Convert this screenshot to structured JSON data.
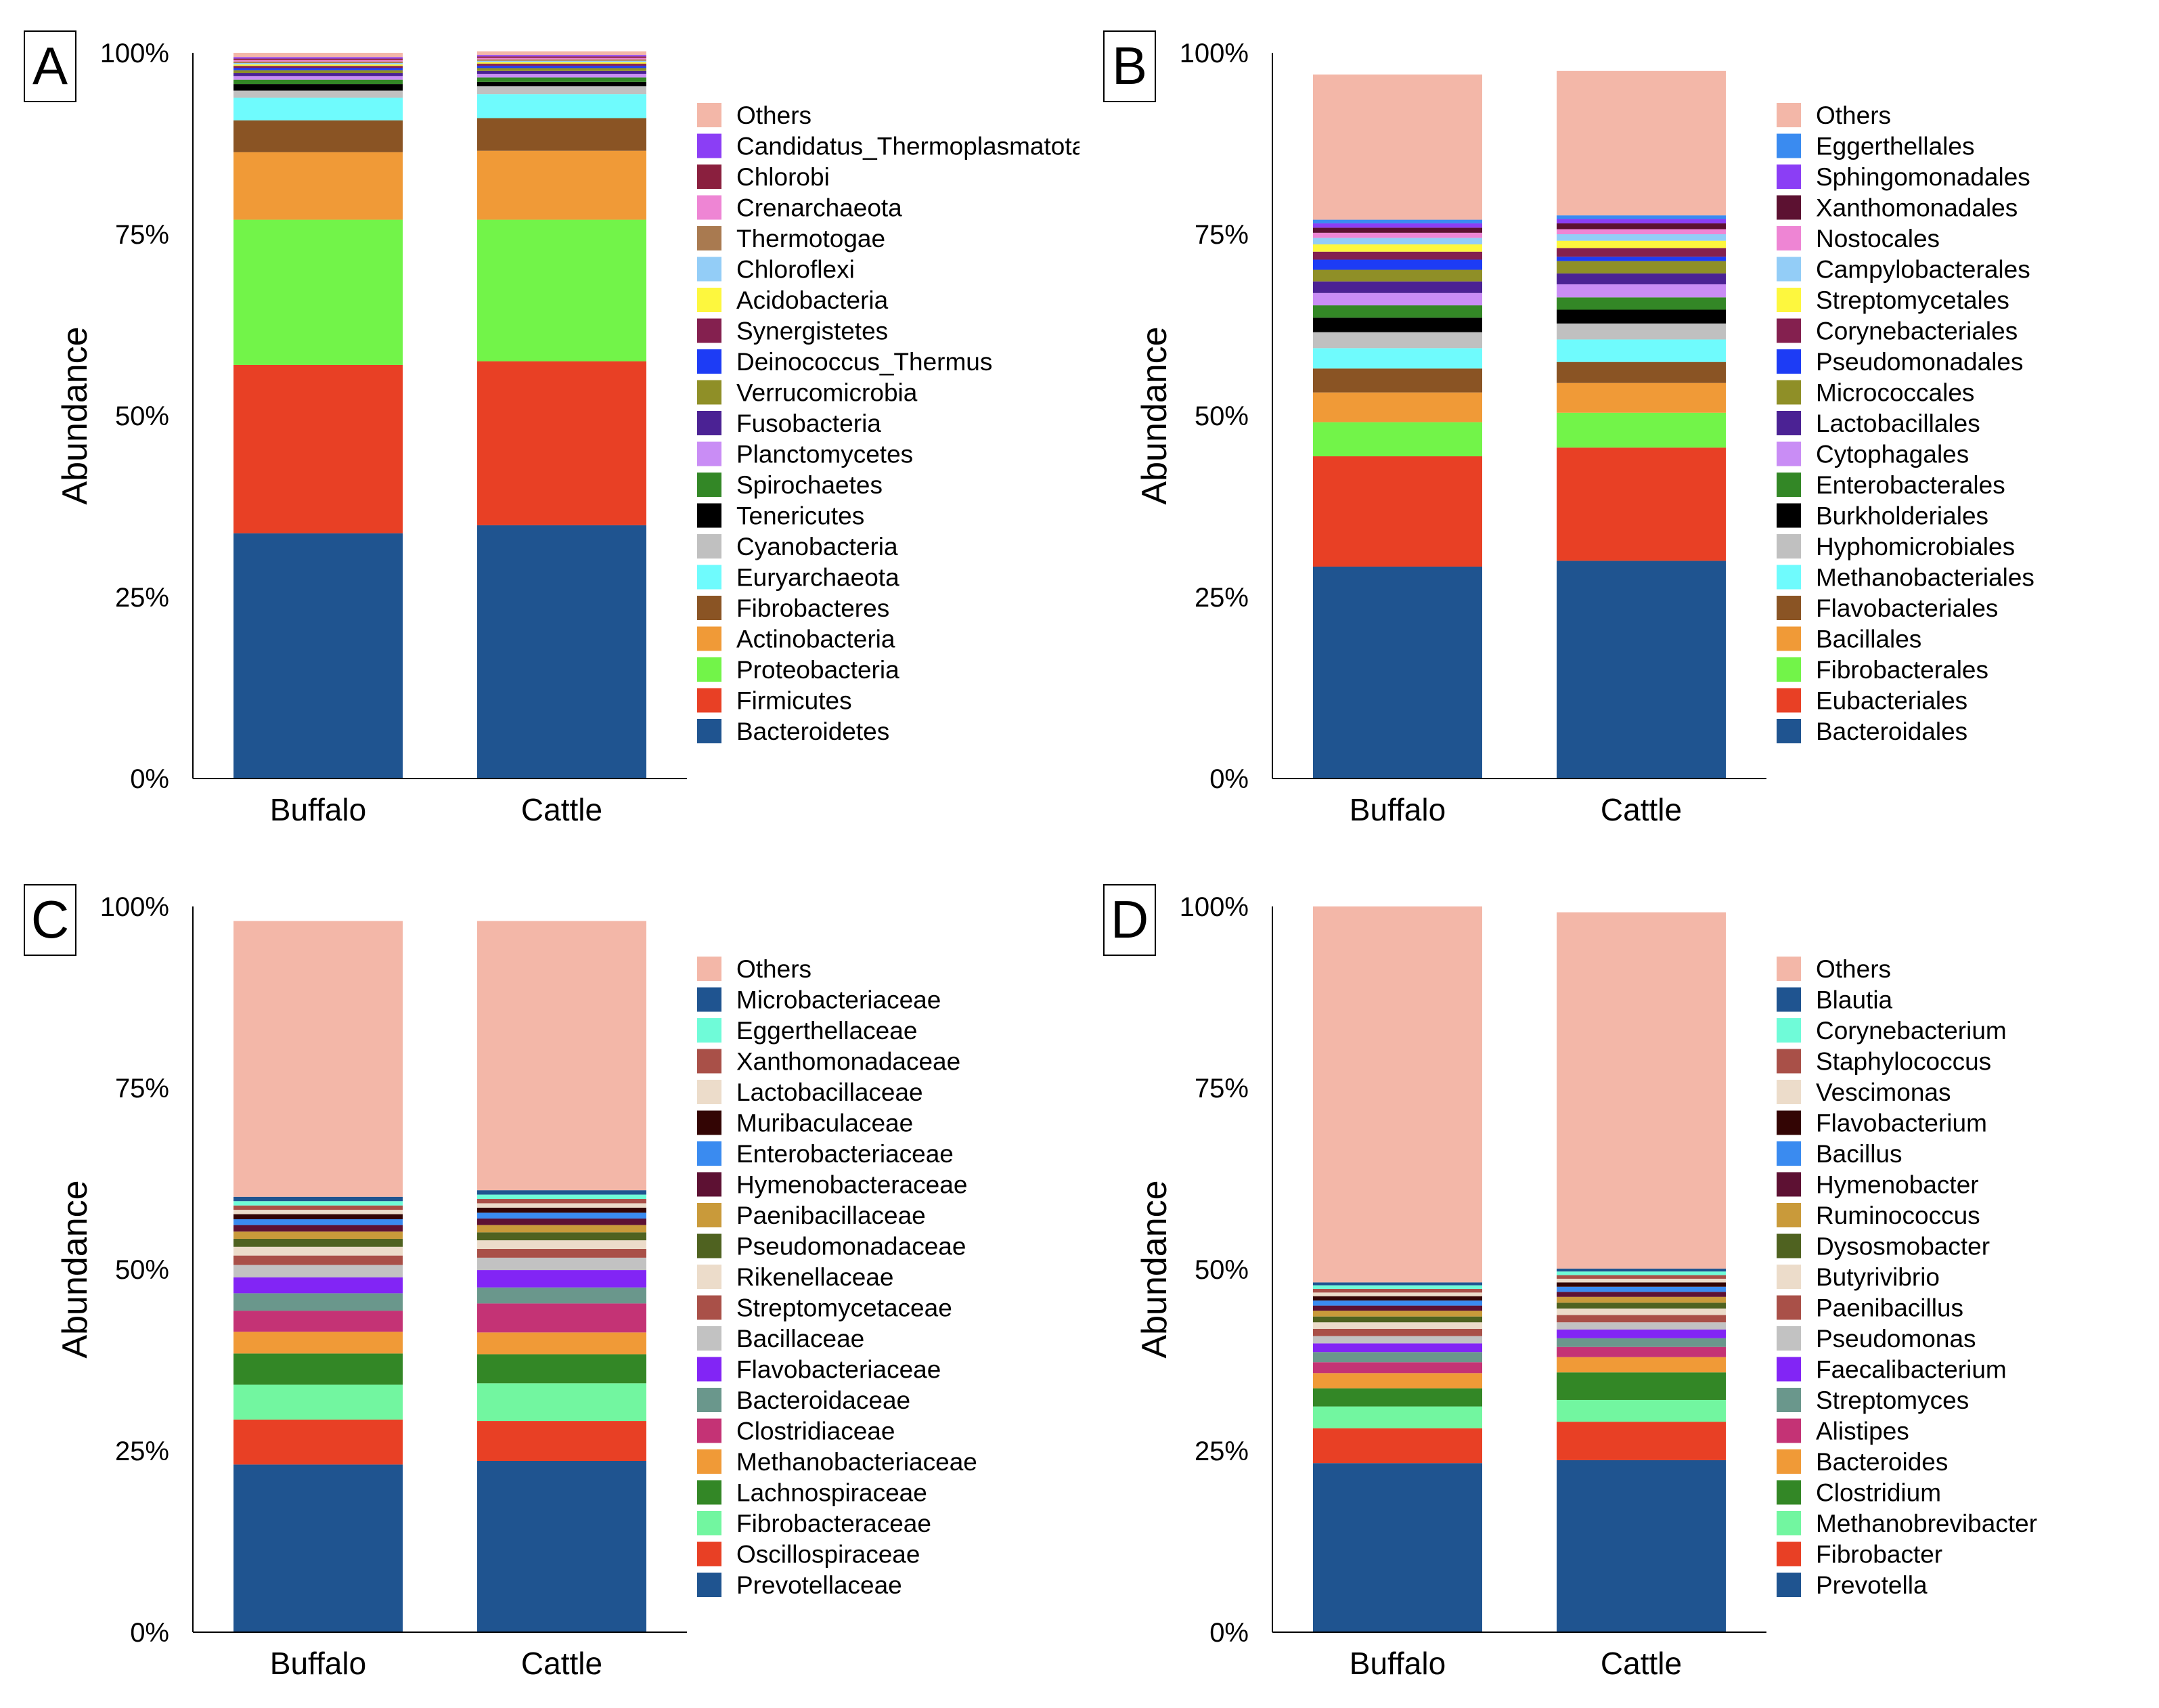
{
  "chart_data": [
    {
      "panel": "A",
      "type": "bar",
      "stacked": true,
      "ylabel": "Abundance",
      "xlabel": "",
      "ylim": [
        0,
        100
      ],
      "yticks": [
        "0%",
        "25%",
        "50%",
        "75%",
        "100%"
      ],
      "categories": [
        "Buffalo",
        "Cattle"
      ],
      "series": [
        {
          "name": "Bacteroidetes",
          "color": "#1f5490",
          "values": [
            33.8,
            34.9
          ]
        },
        {
          "name": "Firmicutes",
          "color": "#e84025",
          "values": [
            23.2,
            22.6
          ]
        },
        {
          "name": "Proteobacteria",
          "color": "#72f449",
          "values": [
            20.0,
            19.5
          ]
        },
        {
          "name": "Actinobacteria",
          "color": "#f09a37",
          "values": [
            9.3,
            9.5
          ]
        },
        {
          "name": "Fibrobacteres",
          "color": "#8a5424",
          "values": [
            4.4,
            4.5
          ]
        },
        {
          "name": "Euryarchaeota",
          "color": "#6ffbfd",
          "values": [
            3.1,
            3.3
          ]
        },
        {
          "name": "Cyanobacteria",
          "color": "#c0c0c0",
          "values": [
            1.0,
            1.1
          ]
        },
        {
          "name": "Tenericutes",
          "color": "#000000",
          "values": [
            0.9,
            0.6
          ]
        },
        {
          "name": "Spirochaetes",
          "color": "#338726",
          "values": [
            0.6,
            0.6
          ]
        },
        {
          "name": "Planctomycetes",
          "color": "#c98df5",
          "values": [
            0.5,
            0.5
          ]
        },
        {
          "name": "Fusobacteria",
          "color": "#4b2294",
          "values": [
            0.4,
            0.4
          ]
        },
        {
          "name": "Verrucomicrobia",
          "color": "#8f8f27",
          "values": [
            0.4,
            0.4
          ]
        },
        {
          "name": "Deinococcus_Thermus",
          "color": "#1d3cf5",
          "values": [
            0.3,
            0.3
          ]
        },
        {
          "name": "Synergistetes",
          "color": "#84204f",
          "values": [
            0.3,
            0.3
          ]
        },
        {
          "name": "Acidobacteria",
          "color": "#fdf73e",
          "values": [
            0.2,
            0.2
          ]
        },
        {
          "name": "Chloroflexi",
          "color": "#93cdf7",
          "values": [
            0.2,
            0.2
          ]
        },
        {
          "name": "Thermotogae",
          "color": "#a97a50",
          "values": [
            0.2,
            0.2
          ]
        },
        {
          "name": "Crenarchaeota",
          "color": "#ee85d4",
          "values": [
            0.2,
            0.2
          ]
        },
        {
          "name": "Chlorobi",
          "color": "#8a1f3e",
          "values": [
            0.2,
            0.2
          ]
        },
        {
          "name": "Candidatus_Thermoplasmatota",
          "color": "#8b3ef5",
          "values": [
            0.2,
            0.2
          ]
        },
        {
          "name": "Others",
          "color": "#f3b7a8",
          "values": [
            0.6,
            0.5
          ]
        }
      ]
    },
    {
      "panel": "B",
      "type": "bar",
      "stacked": true,
      "ylabel": "Abundance",
      "xlabel": "",
      "ylim": [
        0,
        100
      ],
      "yticks": [
        "0%",
        "25%",
        "50%",
        "75%",
        "100%"
      ],
      "categories": [
        "Buffalo",
        "Cattle"
      ],
      "series": [
        {
          "name": "Bacteroidales",
          "color": "#1f5490",
          "values": [
            29.2,
            30.0
          ]
        },
        {
          "name": "Eubacteriales",
          "color": "#e84025",
          "values": [
            15.2,
            15.6
          ]
        },
        {
          "name": "Fibrobacterales",
          "color": "#72f449",
          "values": [
            4.7,
            4.8
          ]
        },
        {
          "name": "Bacillales",
          "color": "#f09a37",
          "values": [
            4.1,
            4.1
          ]
        },
        {
          "name": "Flavobacteriales",
          "color": "#8a5424",
          "values": [
            3.3,
            2.9
          ]
        },
        {
          "name": "Methanobacteriales",
          "color": "#6ffbfd",
          "values": [
            2.8,
            3.1
          ]
        },
        {
          "name": "Hyphomicrobiales",
          "color": "#c0c0c0",
          "values": [
            2.2,
            2.2
          ]
        },
        {
          "name": "Burkholderiales",
          "color": "#000000",
          "values": [
            2.0,
            1.9
          ]
        },
        {
          "name": "Enterobacterales",
          "color": "#338726",
          "values": [
            1.7,
            1.7
          ]
        },
        {
          "name": "Cytophagales",
          "color": "#c98df5",
          "values": [
            1.7,
            1.8
          ]
        },
        {
          "name": "Lactobacillales",
          "color": "#4b2294",
          "values": [
            1.6,
            1.5
          ]
        },
        {
          "name": "Micrococcales",
          "color": "#8f8f27",
          "values": [
            1.6,
            1.7
          ]
        },
        {
          "name": "Pseudomonadales",
          "color": "#1d3cf5",
          "values": [
            1.4,
            0.6
          ]
        },
        {
          "name": "Corynebacteriales",
          "color": "#84204f",
          "values": [
            1.1,
            1.2
          ]
        },
        {
          "name": "Streptomycetales",
          "color": "#fdf73e",
          "values": [
            1.0,
            1.0
          ]
        },
        {
          "name": "Campylobacterales",
          "color": "#93cdf7",
          "values": [
            0.9,
            0.9
          ]
        },
        {
          "name": "Nostocales",
          "color": "#ee85d4",
          "values": [
            0.7,
            0.7
          ]
        },
        {
          "name": "Xanthomonadales",
          "color": "#5c1131",
          "values": [
            0.7,
            0.8
          ]
        },
        {
          "name": "Sphingomonadales",
          "color": "#8b3ef5",
          "values": [
            0.6,
            0.6
          ]
        },
        {
          "name": "Eggerthellales",
          "color": "#3a8bf0",
          "values": [
            0.5,
            0.5
          ]
        },
        {
          "name": "Others",
          "color": "#f3b7a8",
          "values": [
            20.0,
            19.9
          ]
        }
      ]
    },
    {
      "panel": "C",
      "type": "bar",
      "stacked": true,
      "ylabel": "Abundance",
      "xlabel": "",
      "ylim": [
        0,
        100
      ],
      "yticks": [
        "0%",
        "25%",
        "50%",
        "75%",
        "100%"
      ],
      "categories": [
        "Buffalo",
        "Cattle"
      ],
      "series": [
        {
          "name": "Prevotellaceae",
          "color": "#1f5490",
          "values": [
            23.1,
            23.6
          ]
        },
        {
          "name": "Oscillospiraceae",
          "color": "#e84025",
          "values": [
            6.2,
            5.5
          ]
        },
        {
          "name": "Fibrobacteraceae",
          "color": "#72f6a0",
          "values": [
            4.8,
            5.2
          ]
        },
        {
          "name": "Lachnospiraceae",
          "color": "#338726",
          "values": [
            4.3,
            4.0
          ]
        },
        {
          "name": "Methanobacteriaceae",
          "color": "#f09a37",
          "values": [
            3.0,
            3.0
          ]
        },
        {
          "name": "Clostridiaceae",
          "color": "#c43375",
          "values": [
            2.9,
            4.0
          ]
        },
        {
          "name": "Bacteroidaceae",
          "color": "#6a978c",
          "values": [
            2.4,
            2.2
          ]
        },
        {
          "name": "Flavobacteriaceae",
          "color": "#8225f5",
          "values": [
            2.2,
            2.4
          ]
        },
        {
          "name": "Bacillaceae",
          "color": "#c2c2c2",
          "values": [
            1.7,
            1.7
          ]
        },
        {
          "name": "Streptomycetaceae",
          "color": "#a95048",
          "values": [
            1.3,
            1.2
          ]
        },
        {
          "name": "Rikenellaceae",
          "color": "#ecdcca",
          "values": [
            1.2,
            1.2
          ]
        },
        {
          "name": "Pseudomonadaceae",
          "color": "#4f6220",
          "values": [
            1.1,
            1.1
          ]
        },
        {
          "name": "Paenibacillaceae",
          "color": "#c99a3a",
          "values": [
            1.0,
            1.0
          ]
        },
        {
          "name": "Hymenobacteraceae",
          "color": "#5d1133",
          "values": [
            0.9,
            0.9
          ]
        },
        {
          "name": "Enterobacteriaceae",
          "color": "#3a8bf0",
          "values": [
            0.8,
            0.8
          ]
        },
        {
          "name": "Muribaculaceae",
          "color": "#330504",
          "values": [
            0.7,
            0.7
          ]
        },
        {
          "name": "Lactobacillaceae",
          "color": "#ecdcca",
          "values": [
            0.6,
            0.6
          ]
        },
        {
          "name": "Xanthomonadaceae",
          "color": "#a95048",
          "values": [
            0.6,
            0.6
          ]
        },
        {
          "name": "Eggerthellaceae",
          "color": "#6ffbd8",
          "values": [
            0.6,
            0.6
          ]
        },
        {
          "name": "Microbacteriaceae",
          "color": "#1f5490",
          "values": [
            0.6,
            0.6
          ]
        },
        {
          "name": "Others",
          "color": "#f3b7a8",
          "values": [
            38.0,
            37.1
          ]
        }
      ]
    },
    {
      "panel": "D",
      "type": "bar",
      "stacked": true,
      "ylabel": "Abundance",
      "xlabel": "",
      "ylim": [
        0,
        100
      ],
      "yticks": [
        "0%",
        "25%",
        "50%",
        "75%",
        "100%"
      ],
      "categories": [
        "Buffalo",
        "Cattle"
      ],
      "series": [
        {
          "name": "Prevotella",
          "color": "#1f5490",
          "values": [
            23.3,
            23.7
          ]
        },
        {
          "name": "Fibrobacter",
          "color": "#e84025",
          "values": [
            4.8,
            5.3
          ]
        },
        {
          "name": "Methanobrevibacter",
          "color": "#72f6a0",
          "values": [
            3.0,
            3.0
          ]
        },
        {
          "name": "Clostridium",
          "color": "#338726",
          "values": [
            2.5,
            3.8
          ]
        },
        {
          "name": "Bacteroides",
          "color": "#f09a37",
          "values": [
            2.1,
            2.1
          ]
        },
        {
          "name": "Alistipes",
          "color": "#c43375",
          "values": [
            1.5,
            1.4
          ]
        },
        {
          "name": "Streptomyces",
          "color": "#6a978c",
          "values": [
            1.4,
            1.2
          ]
        },
        {
          "name": "Faecalibacterium",
          "color": "#8225f5",
          "values": [
            1.2,
            1.2
          ]
        },
        {
          "name": "Pseudomonas",
          "color": "#c2c2c2",
          "values": [
            1.0,
            1.0
          ]
        },
        {
          "name": "Paenibacillus",
          "color": "#a95048",
          "values": [
            1.0,
            1.0
          ]
        },
        {
          "name": "Butyrivibrio",
          "color": "#ecdcca",
          "values": [
            0.9,
            0.9
          ]
        },
        {
          "name": "Dysosmobacter",
          "color": "#4f6220",
          "values": [
            0.8,
            0.8
          ]
        },
        {
          "name": "Ruminococcus",
          "color": "#c99a3a",
          "values": [
            0.8,
            0.8
          ]
        },
        {
          "name": "Hymenobacter",
          "color": "#5d1133",
          "values": [
            0.7,
            0.7
          ]
        },
        {
          "name": "Bacillus",
          "color": "#3a8bf0",
          "values": [
            0.7,
            0.7
          ]
        },
        {
          "name": "Flavobacterium",
          "color": "#330504",
          "values": [
            0.6,
            0.6
          ]
        },
        {
          "name": "Vescimonas",
          "color": "#ecdcca",
          "values": [
            0.5,
            0.5
          ]
        },
        {
          "name": "Staphylococcus",
          "color": "#a95048",
          "values": [
            0.5,
            0.5
          ]
        },
        {
          "name": "Corynebacterium",
          "color": "#6ffbd8",
          "values": [
            0.5,
            0.5
          ]
        },
        {
          "name": "Blautia",
          "color": "#1f5490",
          "values": [
            0.4,
            0.4
          ]
        },
        {
          "name": "Others",
          "color": "#f3b7a8",
          "values": [
            51.8,
            49.1
          ]
        }
      ]
    }
  ]
}
